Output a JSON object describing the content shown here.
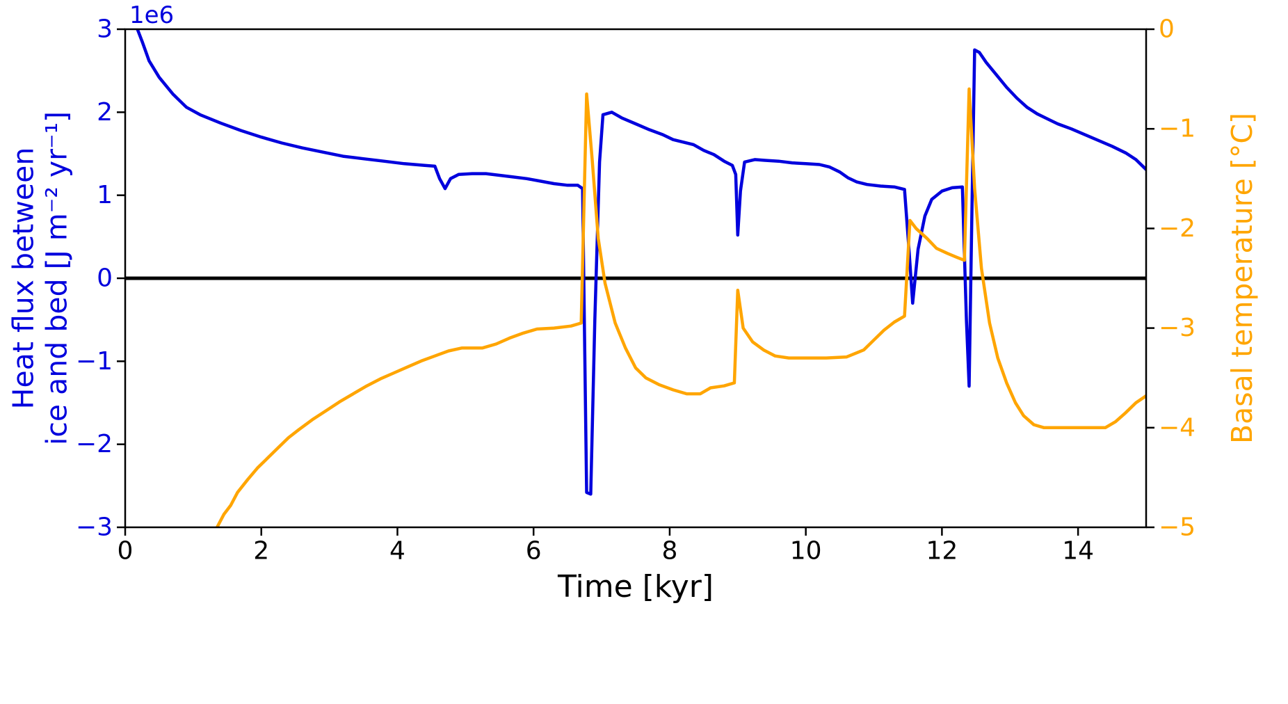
{
  "chart_data": {
    "type": "line",
    "title": "",
    "xlabel": "Time [kyr]",
    "xlim": [
      0,
      15
    ],
    "xticks": [
      0,
      2,
      4,
      6,
      8,
      10,
      12,
      14
    ],
    "grid": false,
    "legend": "none",
    "zero_line": {
      "value": 0,
      "axis": "left",
      "color": "#000000"
    },
    "left_axis": {
      "label_line1": "Heat flux between",
      "label_line2": "ice and bed [J m⁻² yr⁻¹]",
      "offset_text": "1e6",
      "unit_scale": 1000000,
      "color": "#0000dd",
      "ylim": [
        -3,
        3
      ],
      "yticks": [
        -3,
        -2,
        -1,
        0,
        1,
        2,
        3
      ]
    },
    "right_axis": {
      "label": "Basal temperature [°C]",
      "color": "#ffa500",
      "ylim": [
        -5,
        0
      ],
      "yticks": [
        -5,
        -4,
        -3,
        -2,
        -1,
        0
      ]
    },
    "series": [
      {
        "name": "heat-flux",
        "axis": "left",
        "color": "#0000dd",
        "linewidth": 4.5,
        "points": [
          [
            0.1,
            3.45
          ],
          [
            0.18,
            3.0
          ],
          [
            0.25,
            2.85
          ],
          [
            0.35,
            2.62
          ],
          [
            0.5,
            2.42
          ],
          [
            0.7,
            2.22
          ],
          [
            0.9,
            2.06
          ],
          [
            1.1,
            1.97
          ],
          [
            1.4,
            1.87
          ],
          [
            1.7,
            1.78
          ],
          [
            2.0,
            1.7
          ],
          [
            2.3,
            1.63
          ],
          [
            2.6,
            1.57
          ],
          [
            2.9,
            1.52
          ],
          [
            3.2,
            1.47
          ],
          [
            3.5,
            1.44
          ],
          [
            3.8,
            1.41
          ],
          [
            4.1,
            1.38
          ],
          [
            4.4,
            1.36
          ],
          [
            4.55,
            1.35
          ],
          [
            4.62,
            1.2
          ],
          [
            4.7,
            1.08
          ],
          [
            4.78,
            1.2
          ],
          [
            4.9,
            1.25
          ],
          [
            5.1,
            1.26
          ],
          [
            5.3,
            1.26
          ],
          [
            5.5,
            1.24
          ],
          [
            5.7,
            1.22
          ],
          [
            5.9,
            1.2
          ],
          [
            6.1,
            1.17
          ],
          [
            6.3,
            1.14
          ],
          [
            6.5,
            1.12
          ],
          [
            6.65,
            1.12
          ],
          [
            6.72,
            1.08
          ],
          [
            6.78,
            -2.58
          ],
          [
            6.84,
            -2.6
          ],
          [
            6.9,
            -0.5
          ],
          [
            6.97,
            1.4
          ],
          [
            7.02,
            1.97
          ],
          [
            7.15,
            2.0
          ],
          [
            7.3,
            1.93
          ],
          [
            7.5,
            1.86
          ],
          [
            7.7,
            1.79
          ],
          [
            7.9,
            1.73
          ],
          [
            8.05,
            1.67
          ],
          [
            8.2,
            1.64
          ],
          [
            8.35,
            1.61
          ],
          [
            8.5,
            1.54
          ],
          [
            8.65,
            1.49
          ],
          [
            8.8,
            1.41
          ],
          [
            8.92,
            1.36
          ],
          [
            8.97,
            1.25
          ],
          [
            9.0,
            0.52
          ],
          [
            9.04,
            1.05
          ],
          [
            9.1,
            1.4
          ],
          [
            9.25,
            1.43
          ],
          [
            9.4,
            1.42
          ],
          [
            9.6,
            1.41
          ],
          [
            9.8,
            1.39
          ],
          [
            10.0,
            1.38
          ],
          [
            10.2,
            1.37
          ],
          [
            10.35,
            1.34
          ],
          [
            10.5,
            1.28
          ],
          [
            10.62,
            1.21
          ],
          [
            10.75,
            1.16
          ],
          [
            10.9,
            1.13
          ],
          [
            11.1,
            1.11
          ],
          [
            11.3,
            1.1
          ],
          [
            11.45,
            1.07
          ],
          [
            11.52,
            0.3
          ],
          [
            11.57,
            -0.3
          ],
          [
            11.65,
            0.35
          ],
          [
            11.75,
            0.75
          ],
          [
            11.85,
            0.95
          ],
          [
            12.0,
            1.05
          ],
          [
            12.15,
            1.09
          ],
          [
            12.3,
            1.1
          ],
          [
            12.36,
            -0.5
          ],
          [
            12.4,
            -1.3
          ],
          [
            12.44,
            0.8
          ],
          [
            12.48,
            2.75
          ],
          [
            12.55,
            2.72
          ],
          [
            12.65,
            2.6
          ],
          [
            12.8,
            2.45
          ],
          [
            12.95,
            2.3
          ],
          [
            13.1,
            2.17
          ],
          [
            13.25,
            2.06
          ],
          [
            13.4,
            1.98
          ],
          [
            13.55,
            1.92
          ],
          [
            13.7,
            1.86
          ],
          [
            13.9,
            1.8
          ],
          [
            14.1,
            1.73
          ],
          [
            14.3,
            1.66
          ],
          [
            14.5,
            1.59
          ],
          [
            14.7,
            1.51
          ],
          [
            14.85,
            1.43
          ],
          [
            15.0,
            1.31
          ]
        ]
      },
      {
        "name": "basal-temperature",
        "axis": "right",
        "color": "#ffa500",
        "linewidth": 4.5,
        "points": [
          [
            1.25,
            -5.15
          ],
          [
            1.35,
            -5.0
          ],
          [
            1.45,
            -4.87
          ],
          [
            1.55,
            -4.78
          ],
          [
            1.65,
            -4.65
          ],
          [
            1.8,
            -4.52
          ],
          [
            1.95,
            -4.4
          ],
          [
            2.1,
            -4.3
          ],
          [
            2.25,
            -4.2
          ],
          [
            2.4,
            -4.1
          ],
          [
            2.55,
            -4.02
          ],
          [
            2.75,
            -3.92
          ],
          [
            2.95,
            -3.83
          ],
          [
            3.15,
            -3.74
          ],
          [
            3.35,
            -3.66
          ],
          [
            3.55,
            -3.58
          ],
          [
            3.75,
            -3.51
          ],
          [
            3.95,
            -3.45
          ],
          [
            4.15,
            -3.39
          ],
          [
            4.35,
            -3.33
          ],
          [
            4.55,
            -3.28
          ],
          [
            4.75,
            -3.23
          ],
          [
            4.95,
            -3.2
          ],
          [
            5.25,
            -3.2
          ],
          [
            5.45,
            -3.16
          ],
          [
            5.65,
            -3.1
          ],
          [
            5.85,
            -3.05
          ],
          [
            6.05,
            -3.01
          ],
          [
            6.3,
            -3.0
          ],
          [
            6.55,
            -2.98
          ],
          [
            6.7,
            -2.95
          ],
          [
            6.78,
            -0.65
          ],
          [
            6.86,
            -1.3
          ],
          [
            6.95,
            -2.1
          ],
          [
            7.05,
            -2.55
          ],
          [
            7.2,
            -2.95
          ],
          [
            7.35,
            -3.2
          ],
          [
            7.5,
            -3.4
          ],
          [
            7.65,
            -3.5
          ],
          [
            7.85,
            -3.57
          ],
          [
            8.05,
            -3.62
          ],
          [
            8.25,
            -3.66
          ],
          [
            8.45,
            -3.66
          ],
          [
            8.6,
            -3.6
          ],
          [
            8.8,
            -3.58
          ],
          [
            8.95,
            -3.55
          ],
          [
            9.0,
            -2.62
          ],
          [
            9.08,
            -3.0
          ],
          [
            9.22,
            -3.14
          ],
          [
            9.38,
            -3.22
          ],
          [
            9.55,
            -3.28
          ],
          [
            9.75,
            -3.3
          ],
          [
            10.0,
            -3.3
          ],
          [
            10.3,
            -3.3
          ],
          [
            10.6,
            -3.29
          ],
          [
            10.85,
            -3.22
          ],
          [
            11.0,
            -3.12
          ],
          [
            11.15,
            -3.02
          ],
          [
            11.3,
            -2.94
          ],
          [
            11.45,
            -2.88
          ],
          [
            11.53,
            -1.92
          ],
          [
            11.62,
            -2.0
          ],
          [
            11.78,
            -2.1
          ],
          [
            11.92,
            -2.2
          ],
          [
            12.08,
            -2.25
          ],
          [
            12.22,
            -2.29
          ],
          [
            12.33,
            -2.32
          ],
          [
            12.4,
            -0.6
          ],
          [
            12.48,
            -1.6
          ],
          [
            12.58,
            -2.4
          ],
          [
            12.7,
            -2.95
          ],
          [
            12.82,
            -3.3
          ],
          [
            12.95,
            -3.55
          ],
          [
            13.08,
            -3.75
          ],
          [
            13.2,
            -3.88
          ],
          [
            13.35,
            -3.97
          ],
          [
            13.5,
            -4.0
          ],
          [
            13.8,
            -4.0
          ],
          [
            14.1,
            -4.0
          ],
          [
            14.4,
            -4.0
          ],
          [
            14.55,
            -3.94
          ],
          [
            14.7,
            -3.85
          ],
          [
            14.85,
            -3.75
          ],
          [
            15.0,
            -3.68
          ]
        ]
      }
    ]
  }
}
